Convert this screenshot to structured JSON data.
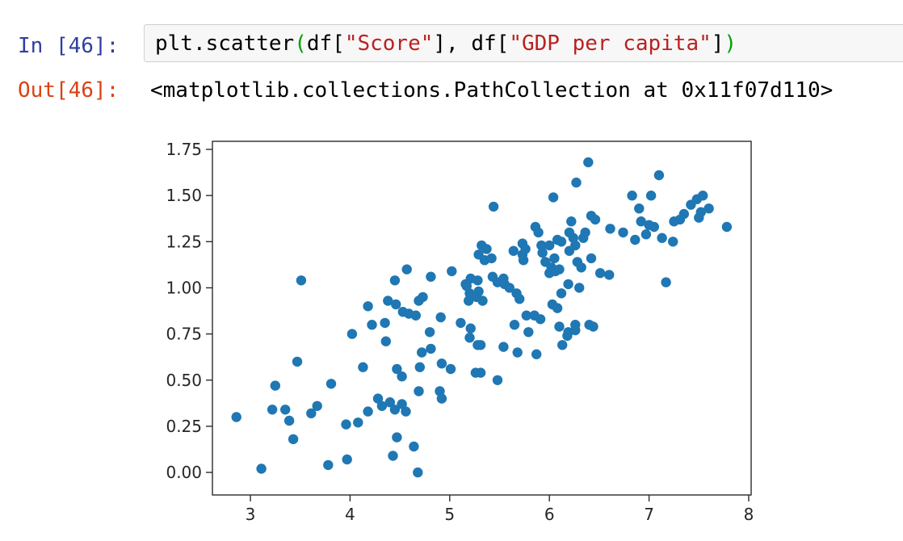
{
  "notebook": {
    "input": {
      "prompt": "In [46]:",
      "code_tokens": [
        {
          "text": "plt.scatter",
          "color": "#000000"
        },
        {
          "text": "(",
          "color": "#00a000"
        },
        {
          "text": "df[",
          "color": "#000000"
        },
        {
          "text": "\"Score\"",
          "color": "#BA2121"
        },
        {
          "text": "], df[",
          "color": "#000000"
        },
        {
          "text": "\"GDP per capita\"",
          "color": "#BA2121"
        },
        {
          "text": "]",
          "color": "#000000"
        },
        {
          "text": ")",
          "color": "#00a000"
        }
      ]
    },
    "output": {
      "prompt": "Out[46]:",
      "text": "<matplotlib.collections.PathCollection at 0x11f07d110>"
    }
  },
  "colors": {
    "in_prompt": "#303F9F",
    "out_prompt": "#D84315",
    "input_box_bg": "#f7f7f7",
    "input_box_border": "#cfcfcf",
    "axis": "#2b2b2b",
    "tick_label": "#262626",
    "marker": "#1f77b4"
  },
  "chart_data": {
    "type": "scatter",
    "title": "",
    "xlabel": "",
    "ylabel": "",
    "x_source": "df[\"Score\"]",
    "y_source": "df[\"GDP per capita\"]",
    "xlim": [
      2.62,
      8.03
    ],
    "ylim": [
      -0.12,
      1.79
    ],
    "x_ticks": [
      "3",
      "4",
      "5",
      "6",
      "7",
      "8"
    ],
    "y_ticks": [
      "0.00",
      "0.25",
      "0.50",
      "0.75",
      "1.00",
      "1.25",
      "1.50",
      "1.75"
    ],
    "grid": false,
    "legend": false,
    "marker_color": "#1f77b4",
    "points": [
      [
        2.86,
        0.3
      ],
      [
        3.11,
        0.02
      ],
      [
        3.22,
        0.34
      ],
      [
        3.25,
        0.47
      ],
      [
        3.35,
        0.34
      ],
      [
        3.39,
        0.28
      ],
      [
        3.43,
        0.18
      ],
      [
        3.47,
        0.6
      ],
      [
        3.51,
        1.04
      ],
      [
        3.61,
        0.32
      ],
      [
        3.67,
        0.36
      ],
      [
        3.78,
        0.04
      ],
      [
        3.81,
        0.48
      ],
      [
        3.96,
        0.26
      ],
      [
        3.97,
        0.07
      ],
      [
        4.02,
        0.75
      ],
      [
        4.08,
        0.27
      ],
      [
        4.13,
        0.57
      ],
      [
        4.18,
        0.33
      ],
      [
        4.18,
        0.9
      ],
      [
        4.22,
        0.8
      ],
      [
        4.28,
        0.4
      ],
      [
        4.32,
        0.36
      ],
      [
        4.35,
        0.81
      ],
      [
        4.36,
        0.71
      ],
      [
        4.38,
        0.93
      ],
      [
        4.4,
        0.38
      ],
      [
        4.43,
        0.09
      ],
      [
        4.45,
        0.34
      ],
      [
        4.45,
        1.04
      ],
      [
        4.46,
        0.91
      ],
      [
        4.47,
        0.19
      ],
      [
        4.47,
        0.56
      ],
      [
        4.52,
        0.37
      ],
      [
        4.52,
        0.52
      ],
      [
        4.53,
        0.87
      ],
      [
        4.56,
        0.33
      ],
      [
        4.57,
        1.1
      ],
      [
        4.59,
        0.86
      ],
      [
        4.64,
        0.14
      ],
      [
        4.66,
        0.85
      ],
      [
        4.68,
        0.0
      ],
      [
        4.69,
        0.44
      ],
      [
        4.69,
        0.93
      ],
      [
        4.7,
        0.57
      ],
      [
        4.72,
        0.65
      ],
      [
        4.73,
        0.95
      ],
      [
        4.8,
        0.76
      ],
      [
        4.81,
        0.67
      ],
      [
        4.81,
        1.06
      ],
      [
        4.9,
        0.44
      ],
      [
        4.91,
        0.84
      ],
      [
        4.92,
        0.4
      ],
      [
        4.92,
        0.59
      ],
      [
        5.01,
        0.56
      ],
      [
        5.02,
        1.09
      ],
      [
        5.11,
        0.81
      ],
      [
        5.16,
        1.02
      ],
      [
        5.17,
        1.01
      ],
      [
        5.19,
        0.93
      ],
      [
        5.2,
        0.73
      ],
      [
        5.2,
        0.97
      ],
      [
        5.21,
        0.78
      ],
      [
        5.21,
        1.05
      ],
      [
        5.26,
        0.54
      ],
      [
        5.27,
        0.95
      ],
      [
        5.28,
        0.69
      ],
      [
        5.28,
        1.04
      ],
      [
        5.29,
        0.98
      ],
      [
        5.29,
        1.18
      ],
      [
        5.31,
        0.69
      ],
      [
        5.31,
        0.54
      ],
      [
        5.32,
        1.23
      ],
      [
        5.33,
        0.93
      ],
      [
        5.35,
        1.15
      ],
      [
        5.37,
        1.21
      ],
      [
        5.42,
        1.16
      ],
      [
        5.43,
        1.06
      ],
      [
        5.44,
        1.44
      ],
      [
        5.48,
        0.5
      ],
      [
        5.48,
        1.03
      ],
      [
        5.54,
        0.68
      ],
      [
        5.54,
        1.05
      ],
      [
        5.55,
        1.02
      ],
      [
        5.6,
        1.0
      ],
      [
        5.64,
        1.2
      ],
      [
        5.65,
        0.8
      ],
      [
        5.67,
        0.97
      ],
      [
        5.68,
        0.65
      ],
      [
        5.7,
        0.94
      ],
      [
        5.73,
        1.24
      ],
      [
        5.73,
        1.18
      ],
      [
        5.74,
        1.15
      ],
      [
        5.76,
        1.21
      ],
      [
        5.77,
        0.85
      ],
      [
        5.79,
        0.76
      ],
      [
        5.85,
        0.85
      ],
      [
        5.86,
        1.33
      ],
      [
        5.87,
        0.64
      ],
      [
        5.89,
        1.3
      ],
      [
        5.91,
        0.83
      ],
      [
        5.92,
        1.23
      ],
      [
        5.93,
        1.19
      ],
      [
        5.96,
        1.14
      ],
      [
        6.0,
        1.08
      ],
      [
        6.0,
        1.23
      ],
      [
        6.02,
        1.11
      ],
      [
        6.03,
        0.91
      ],
      [
        6.04,
        1.49
      ],
      [
        6.05,
        1.16
      ],
      [
        6.06,
        1.09
      ],
      [
        6.08,
        0.89
      ],
      [
        6.08,
        1.26
      ],
      [
        6.1,
        0.79
      ],
      [
        6.1,
        1.1
      ],
      [
        6.12,
        0.97
      ],
      [
        6.12,
        1.25
      ],
      [
        6.13,
        0.69
      ],
      [
        6.18,
        0.74
      ],
      [
        6.19,
        0.76
      ],
      [
        6.19,
        1.02
      ],
      [
        6.2,
        1.2
      ],
      [
        6.2,
        1.3
      ],
      [
        6.22,
        1.36
      ],
      [
        6.24,
        1.27
      ],
      [
        6.26,
        0.77
      ],
      [
        6.26,
        0.8
      ],
      [
        6.26,
        1.23
      ],
      [
        6.27,
        1.57
      ],
      [
        6.28,
        1.14
      ],
      [
        6.3,
        1.0
      ],
      [
        6.32,
        1.11
      ],
      [
        6.34,
        1.27
      ],
      [
        6.36,
        1.3
      ],
      [
        6.39,
        1.68
      ],
      [
        6.4,
        0.8
      ],
      [
        6.42,
        1.16
      ],
      [
        6.42,
        1.39
      ],
      [
        6.44,
        0.79
      ],
      [
        6.46,
        1.37
      ],
      [
        6.51,
        1.08
      ],
      [
        6.6,
        1.07
      ],
      [
        6.61,
        1.32
      ],
      [
        6.74,
        1.3
      ],
      [
        6.83,
        1.5
      ],
      [
        6.86,
        1.26
      ],
      [
        6.9,
        1.43
      ],
      [
        6.92,
        1.36
      ],
      [
        6.97,
        1.29
      ],
      [
        7.0,
        1.34
      ],
      [
        7.02,
        1.5
      ],
      [
        7.05,
        1.33
      ],
      [
        7.1,
        1.61
      ],
      [
        7.13,
        1.27
      ],
      [
        7.17,
        1.03
      ],
      [
        7.24,
        1.25
      ],
      [
        7.25,
        1.36
      ],
      [
        7.31,
        1.37
      ],
      [
        7.35,
        1.4
      ],
      [
        7.42,
        1.45
      ],
      [
        7.48,
        1.48
      ],
      [
        7.5,
        1.38
      ],
      [
        7.52,
        1.41
      ],
      [
        7.54,
        1.5
      ],
      [
        7.6,
        1.43
      ],
      [
        7.78,
        1.33
      ]
    ]
  }
}
